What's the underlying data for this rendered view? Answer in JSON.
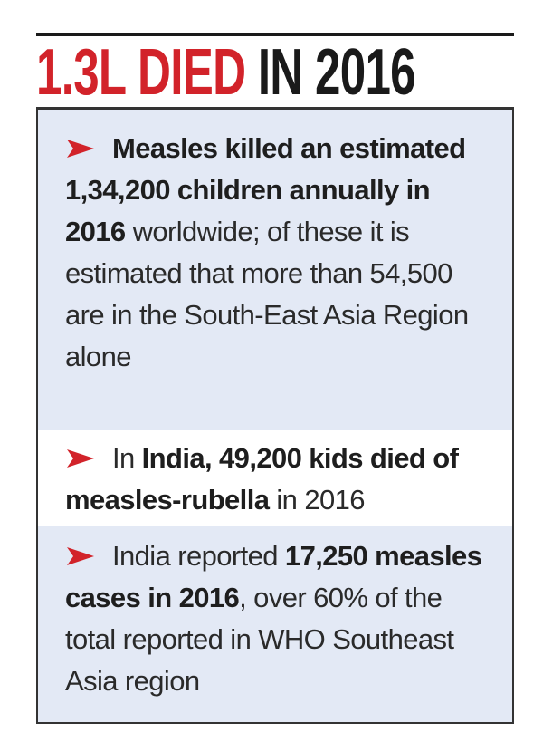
{
  "header": {
    "title": {
      "highlight": "1.3L DIED",
      "rest": "IN 2016"
    }
  },
  "items": [
    {
      "segments": [
        {
          "text": "Measles killed an estimated 1,34,200 children annually in 2016",
          "bold": true
        },
        {
          "text": " worldwide; of these it is estimated that more than 54,500 are in the South-East Asia Region alone",
          "bold": false
        }
      ]
    },
    {
      "segments": [
        {
          "text": "In ",
          "bold": false
        },
        {
          "text": "India, 49,200 kids died of measles-rubella",
          "bold": true
        },
        {
          "text": " in 2016",
          "bold": false
        }
      ]
    },
    {
      "segments": [
        {
          "text": "India reported ",
          "bold": false
        },
        {
          "text": "17,250 measles cases in 2016",
          "bold": true
        },
        {
          "text": ", over 60% of the total reported in WHO Southeast Asia region",
          "bold": false
        }
      ]
    }
  ]
}
